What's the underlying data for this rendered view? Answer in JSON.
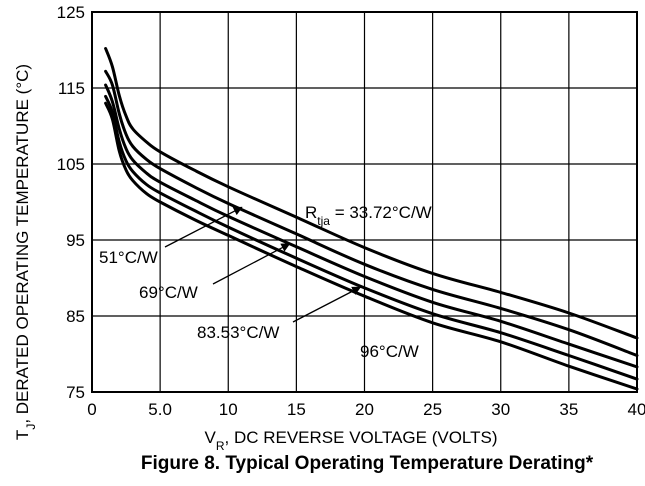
{
  "chart_data": {
    "type": "line",
    "title": "Figure 8. Typical Operating Temperature Derating*",
    "xlabel": {
      "prefix": "V",
      "sub": "R",
      "rest": ", DC REVERSE VOLTAGE (VOLTS)"
    },
    "ylabel": {
      "prefix": "T",
      "sub": "J",
      "rest": ", DERATED OPERATING TEMPERATURE (°C)"
    },
    "xlim": [
      0,
      40
    ],
    "ylim": [
      75,
      125
    ],
    "xticks": [
      0,
      5,
      10,
      15,
      20,
      25,
      30,
      35,
      40
    ],
    "xtick_labels": [
      "0",
      "5.0",
      "10",
      "15",
      "20",
      "25",
      "30",
      "35",
      "40"
    ],
    "yticks": [
      75,
      85,
      95,
      105,
      115,
      125
    ],
    "ytick_labels": [
      "75",
      "85",
      "95",
      "105",
      "115",
      "125"
    ],
    "grid": true,
    "series": [
      {
        "name": "33.72°C/W",
        "x": [
          1,
          1.5,
          2,
          2.5,
          3,
          4,
          5,
          7.5,
          10,
          15,
          20,
          25,
          30,
          35,
          40
        ],
        "y": [
          120.2,
          117.8,
          114.0,
          111.3,
          109.6,
          107.9,
          106.6,
          104.2,
          102.0,
          98.0,
          94.0,
          90.6,
          88.1,
          85.4,
          82.1
        ]
      },
      {
        "name": "51°C/W",
        "x": [
          1,
          1.5,
          2,
          2.5,
          3,
          4,
          5,
          7.5,
          10,
          15,
          20,
          25,
          30,
          35,
          40
        ],
        "y": [
          117.2,
          115.4,
          111.6,
          108.9,
          107.3,
          105.6,
          104.4,
          102.0,
          99.8,
          95.8,
          91.8,
          88.5,
          86.0,
          83.2,
          79.8
        ]
      },
      {
        "name": "69°C/W",
        "x": [
          1,
          1.5,
          2,
          2.5,
          3,
          4,
          5,
          7.5,
          10,
          15,
          20,
          25,
          30,
          35,
          40
        ],
        "y": [
          115.4,
          113.2,
          109.6,
          107.0,
          105.5,
          103.8,
          102.6,
          100.3,
          98.1,
          94.1,
          90.2,
          86.8,
          84.3,
          81.3,
          78.3
        ]
      },
      {
        "name": "83.53°C/W",
        "x": [
          1,
          1.5,
          2,
          2.5,
          3,
          4,
          5,
          7.5,
          10,
          15,
          20,
          25,
          30,
          35,
          40
        ],
        "y": [
          113.9,
          111.8,
          107.9,
          105.4,
          104.0,
          102.3,
          101.2,
          98.9,
          96.7,
          92.6,
          88.7,
          85.3,
          82.8,
          79.8,
          76.7
        ]
      },
      {
        "name": "96°C/W",
        "x": [
          1,
          1.5,
          2,
          2.5,
          3,
          4,
          5,
          7.5,
          10,
          15,
          20,
          25,
          30,
          35,
          40
        ],
        "y": [
          113.0,
          110.9,
          106.7,
          104.2,
          102.8,
          101.1,
          100.0,
          97.7,
          95.6,
          91.5,
          87.6,
          84.1,
          81.6,
          78.4,
          75.4
        ]
      }
    ],
    "annotations": [
      {
        "series": "33.72°C/W",
        "main": "R",
        "sub": "tja",
        "after": " = 33.72°C/W"
      },
      {
        "series": "51°C/W",
        "text": "51°C/W",
        "arrow_to": [
          11,
          99.3
        ]
      },
      {
        "series": "69°C/W",
        "text": "69°C/W",
        "arrow_to": [
          14.5,
          94.5
        ]
      },
      {
        "series": "83.53°C/W",
        "text": "83.53°C/W",
        "arrow_to": [
          19.7,
          88.8
        ]
      },
      {
        "series": "96°C/W",
        "text": "96°C/W"
      }
    ]
  }
}
